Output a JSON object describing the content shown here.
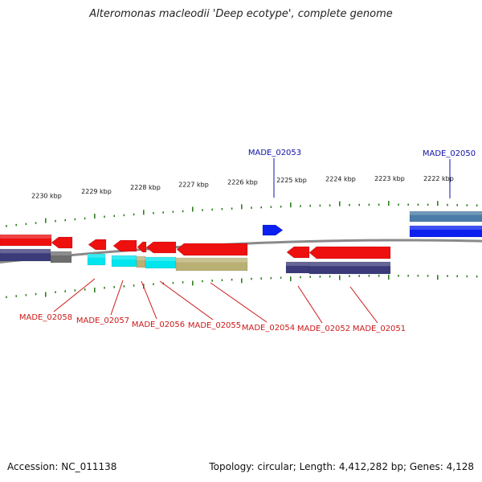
{
  "title": "Alteromonas macleodii 'Deep ecotype', complete genome",
  "footer": {
    "accession": "Accession: NC_011138",
    "summary": "Topology: circular; Length: 4,412,282 bp; Genes: 4,128"
  },
  "colors": {
    "backbone": "#8a8a8a",
    "tick": "#2e7d1f",
    "forward_label": "#1010aa",
    "reverse_label": "#cc1a1a",
    "cds_red": "#ee0f0f",
    "cds_blue": "#0a1ff0",
    "steelblue": "#4b7ca8",
    "navy": "#3b3b7a",
    "cyan": "#00e5ee",
    "khaki": "#b9b074",
    "gray": "#6e6e6e"
  },
  "scale_ticks": [
    "2230 kbp",
    "2229 kbp",
    "2228 kbp",
    "2227 kbp",
    "2226 kbp",
    "2225 kbp",
    "2224 kbp",
    "2223 kbp",
    "2222 kbp"
  ],
  "forward_labels": [
    "MADE_02053",
    "MADE_02050"
  ],
  "reverse_labels": [
    "MADE_02058",
    "MADE_02057",
    "MADE_02056",
    "MADE_02055",
    "MADE_02054",
    "MADE_02052",
    "MADE_02051"
  ]
}
